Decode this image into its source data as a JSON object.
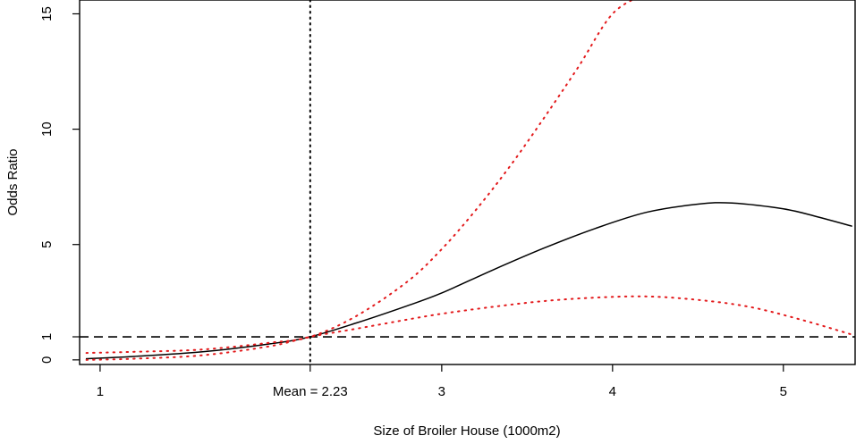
{
  "chart_data": {
    "type": "line",
    "title": "",
    "xlabel": "Size of Broiler House (1000m2)",
    "ylabel": "Odds Ratio",
    "xlim": [
      0.88,
      5.42
    ],
    "ylim": [
      -0.2,
      15.6
    ],
    "x_ticks": [
      {
        "value": 1,
        "label": "1"
      },
      {
        "value": 2.23,
        "label": "Mean = 2.23"
      },
      {
        "value": 3,
        "label": "3"
      },
      {
        "value": 4,
        "label": "4"
      },
      {
        "value": 5,
        "label": "5"
      }
    ],
    "y_ticks": [
      {
        "value": 0,
        "label": "0"
      },
      {
        "value": 1,
        "label": "1"
      },
      {
        "value": 5,
        "label": "5"
      },
      {
        "value": 10,
        "label": "10"
      },
      {
        "value": 15,
        "label": "15"
      }
    ],
    "reference_lines": [
      {
        "orientation": "horizontal",
        "value": 1,
        "style": "dashed",
        "color": "#000000"
      },
      {
        "orientation": "vertical",
        "value": 2.23,
        "style": "dotted",
        "color": "#000000"
      }
    ],
    "series": [
      {
        "role": "estimate",
        "color": "#000000",
        "style": "solid",
        "x": [
          0.92,
          1.2,
          1.6,
          2.0,
          2.23,
          2.5,
          2.8,
          3.0,
          3.3,
          3.6,
          3.9,
          4.2,
          4.5,
          4.7,
          5.0,
          5.2,
          5.4
        ],
        "y": [
          0.05,
          0.15,
          0.35,
          0.7,
          1.0,
          1.6,
          2.35,
          2.9,
          3.9,
          4.85,
          5.7,
          6.4,
          6.75,
          6.8,
          6.55,
          6.2,
          5.8
        ]
      },
      {
        "role": "upper-ci",
        "color": "#e31a1c",
        "style": "dotted",
        "x": [
          0.92,
          1.2,
          1.6,
          2.0,
          2.23,
          2.5,
          2.8,
          3.0,
          3.2,
          3.4,
          3.6,
          3.8,
          4.0,
          4.2
        ],
        "y": [
          0.3,
          0.35,
          0.45,
          0.75,
          1.0,
          1.9,
          3.4,
          4.8,
          6.5,
          8.4,
          10.5,
          12.7,
          15.0,
          15.9
        ]
      },
      {
        "role": "lower-ci",
        "color": "#e31a1c",
        "style": "dotted",
        "x": [
          0.92,
          1.2,
          1.6,
          2.0,
          2.23,
          2.5,
          2.8,
          3.0,
          3.3,
          3.6,
          3.9,
          4.2,
          4.5,
          4.8,
          5.1,
          5.4
        ],
        "y": [
          0.0,
          0.05,
          0.2,
          0.6,
          1.0,
          1.35,
          1.75,
          2.0,
          2.3,
          2.55,
          2.7,
          2.75,
          2.6,
          2.3,
          1.75,
          1.1
        ]
      }
    ]
  }
}
